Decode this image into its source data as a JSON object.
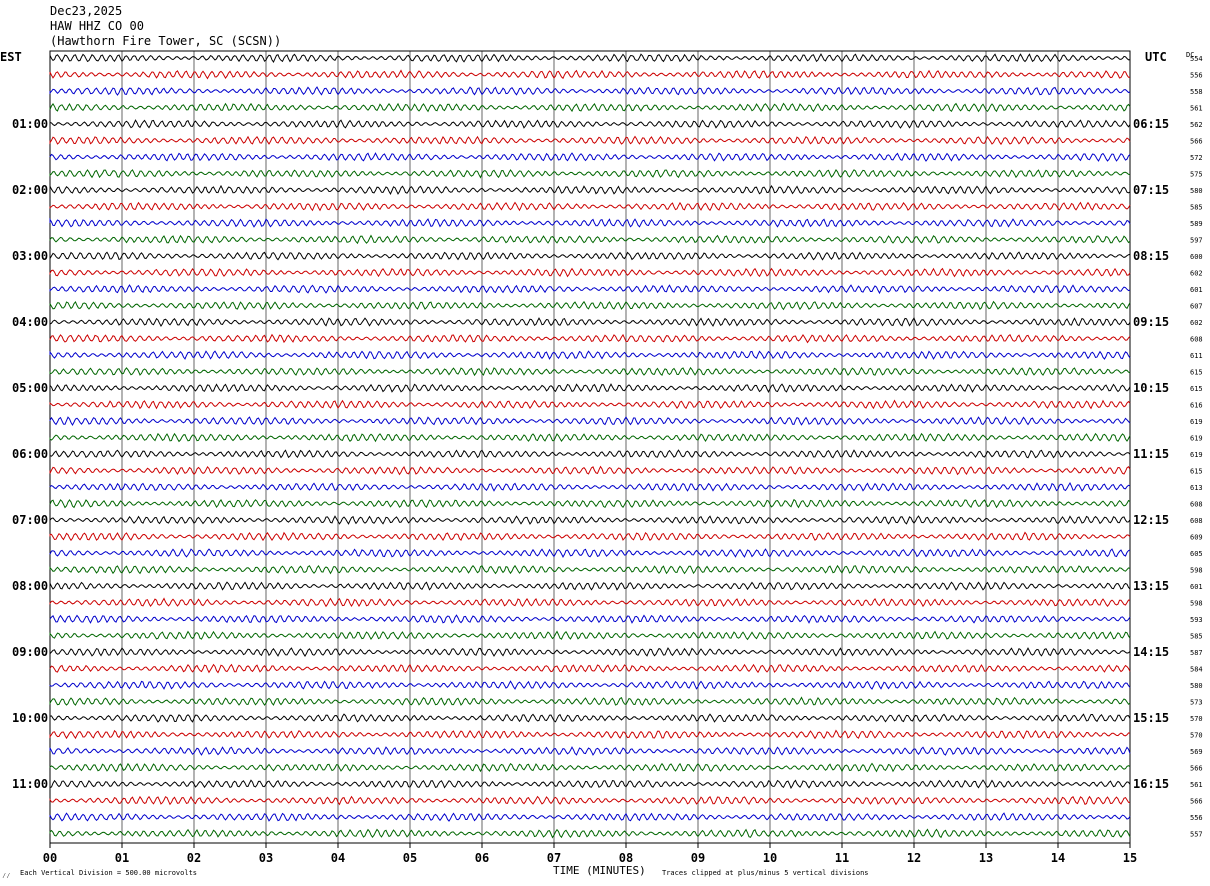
{
  "header": {
    "date": "Dec23,2025",
    "station": "HAW HHZ CO 00",
    "location": "(Hawthorn Fire Tower, SC (SCSN))"
  },
  "left_tz": "EST",
  "right_tz": "UTC",
  "dc_label": "DC",
  "footer": {
    "scale_note": "Each Vertical Division =  500.00 microvolts",
    "clip_note": "Traces clipped at plus/minus 5 vertical divisions",
    "mark": "⁄⁄"
  },
  "colors": {
    "trace_cycle": [
      "#000000",
      "#cc0000",
      "#0000cc",
      "#006600"
    ],
    "grid": "#000000"
  },
  "chart_data": {
    "type": "line",
    "title": "",
    "xlabel": "TIME (MINUTES)",
    "xlim": [
      0,
      15
    ],
    "x_ticks": [
      "00",
      "01",
      "02",
      "03",
      "04",
      "05",
      "06",
      "07",
      "08",
      "09",
      "10",
      "11",
      "12",
      "13",
      "14",
      "15"
    ],
    "trace_count": 48,
    "est_hour_labels": [
      "01:00",
      "02:00",
      "03:00",
      "04:00",
      "05:00",
      "06:00",
      "07:00",
      "08:00",
      "09:00",
      "10:00",
      "11:00"
    ],
    "utc_hour_labels": [
      "06:15",
      "07:15",
      "08:15",
      "09:15",
      "10:15",
      "11:15",
      "12:15",
      "13:15",
      "14:15",
      "15:15",
      "16:15"
    ],
    "hour_label_every_n_traces": 4,
    "dc_offsets": [
      554,
      556,
      558,
      561,
      562,
      566,
      572,
      575,
      580,
      585,
      589,
      597,
      600,
      602,
      601,
      607,
      602,
      608,
      611,
      615,
      615,
      616,
      619,
      619,
      619,
      615,
      613,
      608,
      608,
      609,
      605,
      598,
      601,
      598,
      593,
      585,
      587,
      584,
      580,
      573,
      570,
      570,
      569,
      566,
      561,
      566,
      556,
      557
    ]
  }
}
